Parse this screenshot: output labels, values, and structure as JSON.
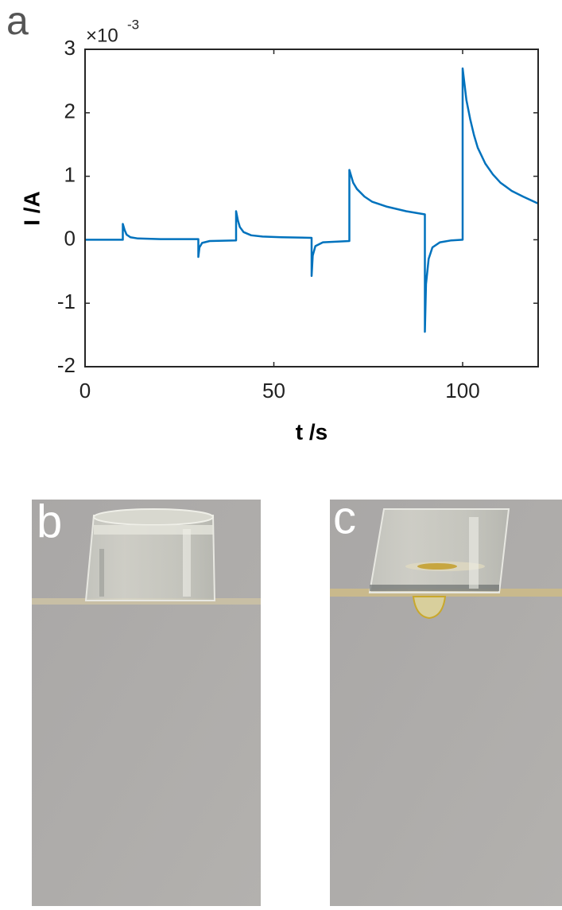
{
  "chart_data": {
    "type": "line",
    "panel_label": "a",
    "y_scale_base": "×10",
    "y_scale_exponent": "-3",
    "xlabel": "t /s",
    "ylabel": "I /A",
    "color": "#0072bd",
    "x": [
      0,
      10,
      10,
      10.5,
      11,
      12,
      14,
      20,
      30,
      30,
      30.3,
      31,
      33,
      40,
      40,
      40.5,
      41,
      42,
      44,
      47,
      52,
      60,
      60,
      60.3,
      61,
      63,
      70,
      70,
      70.5,
      71,
      72,
      74,
      76,
      80,
      85,
      90,
      90,
      90.3,
      91,
      92,
      94,
      97,
      100,
      100,
      100.5,
      101,
      102,
      103,
      104,
      106,
      108,
      110,
      113,
      116,
      120
    ],
    "values": [
      0,
      0,
      0.25,
      0.15,
      0.08,
      0.04,
      0.02,
      0.01,
      0.01,
      -0.27,
      -0.12,
      -0.05,
      -0.02,
      -0.01,
      0.45,
      0.3,
      0.2,
      0.12,
      0.07,
      0.05,
      0.04,
      0.03,
      -0.57,
      -0.25,
      -0.1,
      -0.04,
      -0.02,
      1.1,
      1.0,
      0.9,
      0.8,
      0.68,
      0.6,
      0.52,
      0.45,
      0.4,
      -1.45,
      -0.7,
      -0.3,
      -0.12,
      -0.04,
      -0.01,
      0,
      2.7,
      2.45,
      2.2,
      1.9,
      1.65,
      1.45,
      1.2,
      1.03,
      0.9,
      0.77,
      0.68,
      0.57
    ],
    "xlim": [
      0,
      120
    ],
    "xticks": [
      0,
      50,
      100
    ],
    "ylim": [
      -2,
      3
    ],
    "yticks": [
      -2,
      -1,
      0,
      1,
      2,
      3
    ]
  },
  "photos": [
    {
      "label": "b"
    },
    {
      "label": "c"
    }
  ]
}
